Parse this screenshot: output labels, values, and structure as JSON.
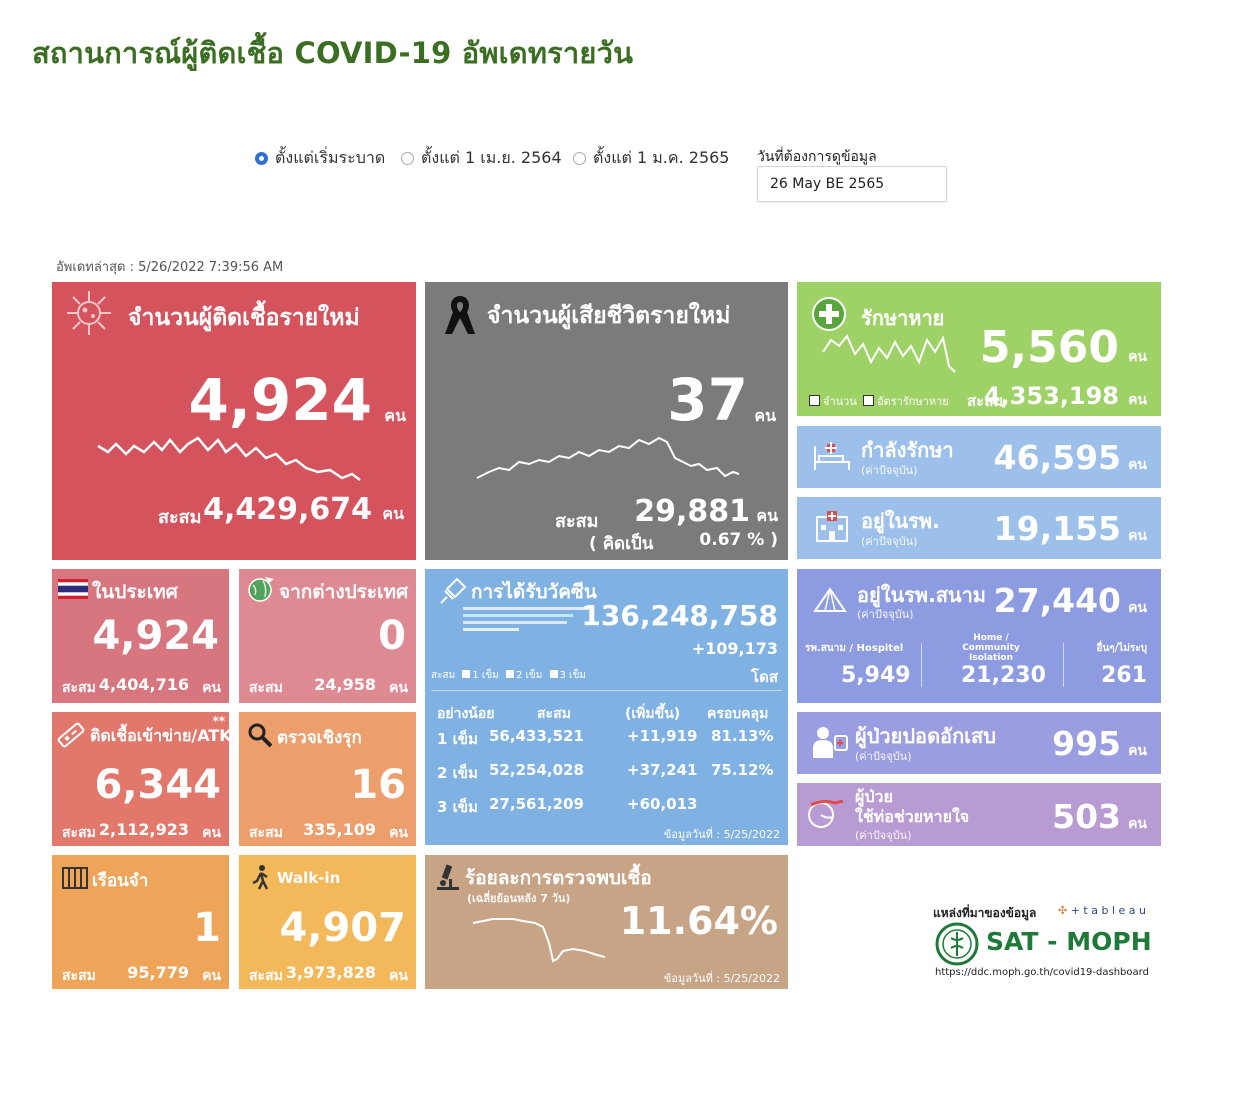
{
  "page_title": "สถานการณ์ผู้ติดเชื้อ COVID-19 อัพเดทรายวัน",
  "filters": {
    "options": [
      {
        "label": "ตั้งแต่เริ่มระบาด",
        "selected": true
      },
      {
        "label": "ตั้งแต่ 1 เม.ย. 2564",
        "selected": false
      },
      {
        "label": "ตั้งแต่ 1 ม.ค. 2565",
        "selected": false
      }
    ],
    "date_label": "วันที่ต้องการดูข้อมูล",
    "date_value": "26 May BE 2565"
  },
  "updated": "อัพเดทล่าสุด : 5/26/2022 7:39:56 AM",
  "colors": {
    "new_cases": "#d4535d",
    "deaths": "#7b7b7b",
    "recovered": "#9ed267",
    "treating": "#9cc0ea",
    "vaccine": "#7fb2e2",
    "field_hospital": "#8d9ce0",
    "pneumonia": "#9a9ee0",
    "ventilator": "#b99bd3",
    "domestic": "#d7767e",
    "abroad": "#de8a93",
    "atk": "#e2786c",
    "proactive": "#ec9f6c",
    "prison": "#eea55a",
    "walkin": "#f2b85a",
    "positivity": "#c7a486"
  },
  "new_cases": {
    "icon": "virus-icon",
    "title": "จำนวนผู้ติดเชื้อรายใหม่",
    "value": "4,924",
    "unit": "คน",
    "cum_label": "สะสม",
    "cum_value": "4,429,674",
    "cum_unit": "คน"
  },
  "deaths": {
    "icon": "black-ribbon-icon",
    "title": "จำนวนผู้เสียชีวิตรายใหม่",
    "value": "37",
    "unit": "คน",
    "cum_label": "สะสม",
    "cum_value": "29,881",
    "cum_unit": "คน",
    "rate_label": "( คิดเป็น",
    "rate_value": "0.67 % )"
  },
  "recovered": {
    "icon": "plus-circle-icon",
    "title": "รักษาหาย",
    "value": "5,560",
    "unit": "คน",
    "legend1": "จำนวน",
    "legend2": "อัตรารักษาหาย",
    "cum_label": "สะสม",
    "cum_value": "4,353,198",
    "cum_unit": "คน"
  },
  "treating": {
    "icon": "hospital-bed-icon",
    "title": "กำลังรักษา",
    "sub": "(ค่าปัจจุบัน)",
    "value": "46,595",
    "unit": "คน"
  },
  "in_hospital": {
    "icon": "hospital-building-icon",
    "title": "อยู่ในรพ.",
    "sub": "(ค่าปัจจุบัน)",
    "value": "19,155",
    "unit": "คน"
  },
  "domestic": {
    "icon": "thai-flag-icon",
    "title": "ในประเทศ",
    "value": "4,924",
    "cum_label": "สะสม",
    "cum_value": "4,404,716",
    "cum_unit": "คน"
  },
  "abroad": {
    "icon": "globe-plane-icon",
    "title": "จากต่างประเทศ",
    "value": "0",
    "cum_label": "สะสม",
    "cum_value": "24,958",
    "cum_unit": "คน"
  },
  "vaccine": {
    "icon": "syringe-icon",
    "title": "การได้รับวัคซีน",
    "total": "136,248,758",
    "increase": "+109,173",
    "unit": "โดส",
    "legend": [
      "สะสม",
      "1 เข็ม",
      "2 เข็ม",
      "3 เข็ม"
    ],
    "headers": [
      "อย่างน้อย",
      "สะสม",
      "(เพิ่มขึ้น)",
      "ครอบคลุม"
    ],
    "rows": [
      {
        "dose": "1 เข็ม",
        "cum": "56,433,521",
        "inc": "+11,919",
        "cov": "81.13%"
      },
      {
        "dose": "2 เข็ม",
        "cum": "52,254,028",
        "inc": "+37,241",
        "cov": "75.12%"
      },
      {
        "dose": "3 เข็ม",
        "cum": "27,561,209",
        "inc": "+60,013",
        "cov": ""
      }
    ],
    "as_of": "ข้อมูลวันที่ : 5/25/2022"
  },
  "field_hospital": {
    "icon": "tent-icon",
    "title": "อยู่ในรพ.สนาม",
    "sub": "(ค่าปัจจุบัน)",
    "value": "27,440",
    "unit": "คน",
    "cols": [
      {
        "label": "รพ.สนาม / Hospitel",
        "value": "5,949"
      },
      {
        "label": "Home / Community Isolation",
        "value": "21,230"
      },
      {
        "label": "อื่นๆ/ไม่ระบุ",
        "value": "261"
      }
    ]
  },
  "atk": {
    "icon": "atk-test-icon",
    "title": "ติดเชื้อเข้าข่าย/ATK",
    "stars": "**",
    "value": "6,344",
    "cum_label": "สะสม",
    "cum_value": "2,112,923",
    "cum_unit": "คน"
  },
  "proactive": {
    "icon": "magnifier-icon",
    "title": "ตรวจเชิงรุก",
    "value": "16",
    "cum_label": "สะสม",
    "cum_value": "335,109",
    "cum_unit": "คน"
  },
  "pneumonia": {
    "icon": "lung-patient-icon",
    "title": "ผู้ป่วยปอดอักเสบ",
    "sub": "(ค่าปัจจุบัน)",
    "value": "995",
    "unit": "คน"
  },
  "ventilator": {
    "icon": "ventilator-icon",
    "title1": "ผู้ป่วย",
    "title2": "ใช้ท่อช่วยหายใจ",
    "sub": "(ค่าปัจจุบัน)",
    "value": "503",
    "unit": "คน"
  },
  "prison": {
    "icon": "prison-bars-icon",
    "title": "เรือนจำ",
    "value": "1",
    "cum_label": "สะสม",
    "cum_value": "95,779",
    "cum_unit": "คน"
  },
  "walkin": {
    "icon": "walking-person-icon",
    "title": "Walk-in",
    "value": "4,907",
    "cum_label": "สะสม",
    "cum_value": "3,973,828",
    "cum_unit": "คน"
  },
  "positivity": {
    "icon": "microscope-icon",
    "title": "ร้อยละการตรวจพบเชื้อ",
    "sub": "(เฉลี่ยย้อนหลัง 7 วัน)",
    "value": "11.64%",
    "as_of": "ข้อมูลวันที่ : 5/25/2022"
  },
  "source": {
    "label": "แหล่งที่มาของข้อมูล",
    "tableau": "+ t a b l e a u",
    "brand": "SAT - MOPH",
    "url": "https://ddc.moph.go.th/covid19-dashboard"
  }
}
